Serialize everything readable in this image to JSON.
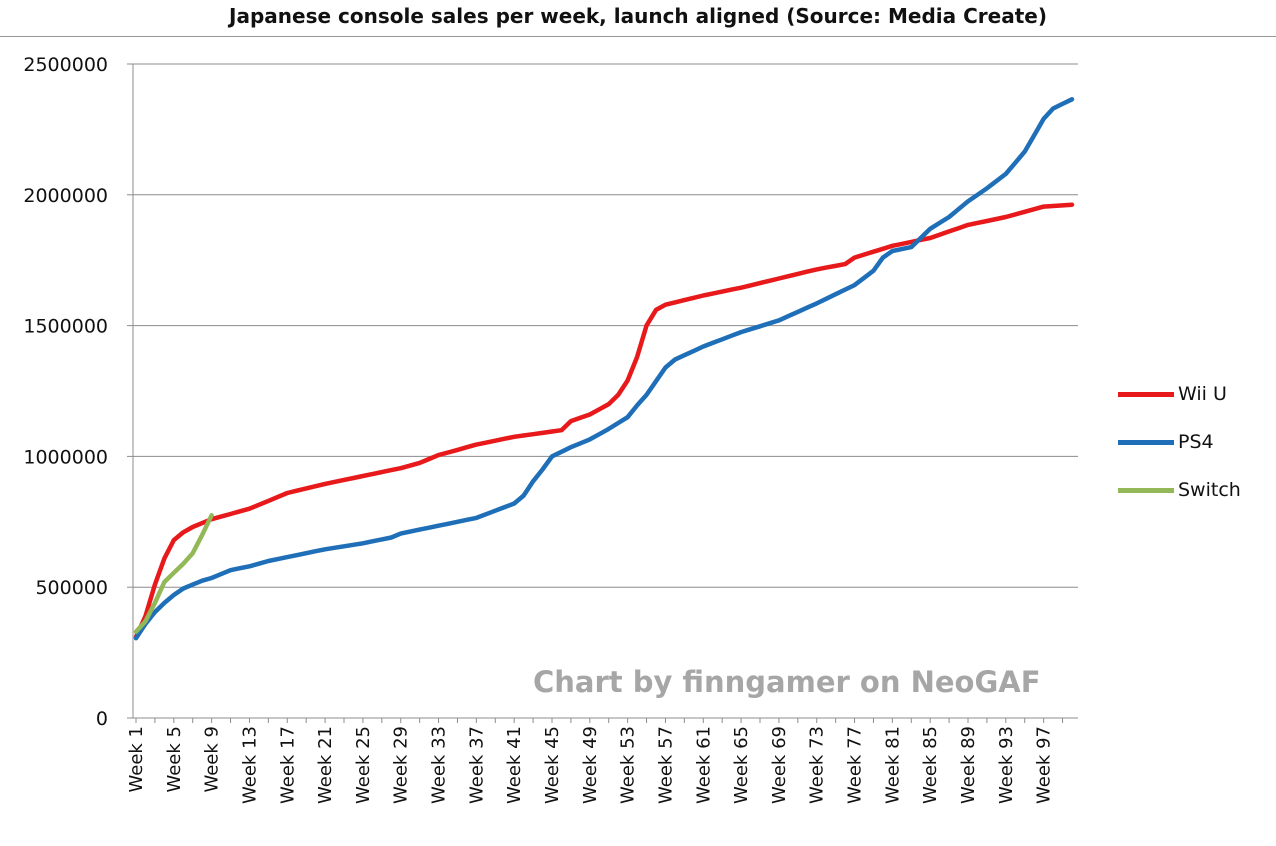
{
  "chart_data": {
    "type": "line",
    "title": "Japanese console sales per week, launch aligned (Source: Media Create)",
    "watermark": "Chart by finngamer on NeoGAF",
    "xlabel": "",
    "ylabel": "",
    "ylim": [
      0,
      2500000
    ],
    "yticks": [
      0,
      500000,
      1000000,
      1500000,
      2000000,
      2500000
    ],
    "ytick_labels": [
      "0",
      "500000",
      "1000000",
      "1500000",
      "2000000",
      "2500000"
    ],
    "x_count": 100,
    "x_tick_weeks": [
      1,
      5,
      9,
      13,
      17,
      21,
      25,
      29,
      33,
      37,
      41,
      45,
      49,
      53,
      57,
      61,
      65,
      69,
      73,
      77,
      81,
      85,
      89,
      93,
      97
    ],
    "x_label_prefix": "Week ",
    "grid": true,
    "legend_position": "right",
    "series": [
      {
        "name": "Wii U",
        "color": "#e8191b",
        "anchors": [
          [
            1,
            310000
          ],
          [
            2,
            390000
          ],
          [
            3,
            510000
          ],
          [
            4,
            610000
          ],
          [
            5,
            680000
          ],
          [
            6,
            710000
          ],
          [
            7,
            730000
          ],
          [
            8,
            745000
          ],
          [
            9,
            760000
          ],
          [
            11,
            780000
          ],
          [
            13,
            800000
          ],
          [
            15,
            830000
          ],
          [
            17,
            860000
          ],
          [
            21,
            895000
          ],
          [
            25,
            925000
          ],
          [
            29,
            955000
          ],
          [
            31,
            975000
          ],
          [
            33,
            1005000
          ],
          [
            37,
            1045000
          ],
          [
            41,
            1075000
          ],
          [
            45,
            1095000
          ],
          [
            46,
            1100000
          ],
          [
            47,
            1135000
          ],
          [
            49,
            1160000
          ],
          [
            51,
            1200000
          ],
          [
            52,
            1235000
          ],
          [
            53,
            1290000
          ],
          [
            54,
            1380000
          ],
          [
            55,
            1500000
          ],
          [
            56,
            1560000
          ],
          [
            57,
            1580000
          ],
          [
            61,
            1615000
          ],
          [
            65,
            1645000
          ],
          [
            69,
            1680000
          ],
          [
            73,
            1715000
          ],
          [
            76,
            1735000
          ],
          [
            77,
            1760000
          ],
          [
            81,
            1805000
          ],
          [
            85,
            1835000
          ],
          [
            89,
            1885000
          ],
          [
            93,
            1915000
          ],
          [
            97,
            1955000
          ],
          [
            100,
            1962000
          ]
        ]
      },
      {
        "name": "PS4",
        "color": "#1f6fb8",
        "anchors": [
          [
            1,
            305000
          ],
          [
            2,
            360000
          ],
          [
            3,
            405000
          ],
          [
            4,
            440000
          ],
          [
            5,
            470000
          ],
          [
            6,
            495000
          ],
          [
            7,
            510000
          ],
          [
            8,
            525000
          ],
          [
            9,
            535000
          ],
          [
            11,
            565000
          ],
          [
            13,
            580000
          ],
          [
            15,
            600000
          ],
          [
            17,
            615000
          ],
          [
            21,
            645000
          ],
          [
            25,
            668000
          ],
          [
            28,
            690000
          ],
          [
            29,
            705000
          ],
          [
            33,
            735000
          ],
          [
            37,
            765000
          ],
          [
            41,
            820000
          ],
          [
            42,
            850000
          ],
          [
            43,
            905000
          ],
          [
            44,
            950000
          ],
          [
            45,
            1000000
          ],
          [
            47,
            1035000
          ],
          [
            49,
            1065000
          ],
          [
            51,
            1105000
          ],
          [
            53,
            1150000
          ],
          [
            54,
            1195000
          ],
          [
            55,
            1235000
          ],
          [
            57,
            1340000
          ],
          [
            58,
            1370000
          ],
          [
            61,
            1420000
          ],
          [
            65,
            1475000
          ],
          [
            69,
            1520000
          ],
          [
            73,
            1585000
          ],
          [
            77,
            1655000
          ],
          [
            79,
            1710000
          ],
          [
            80,
            1760000
          ],
          [
            81,
            1785000
          ],
          [
            83,
            1800000
          ],
          [
            84,
            1835000
          ],
          [
            85,
            1870000
          ],
          [
            87,
            1915000
          ],
          [
            89,
            1975000
          ],
          [
            91,
            2025000
          ],
          [
            93,
            2080000
          ],
          [
            95,
            2165000
          ],
          [
            97,
            2290000
          ],
          [
            98,
            2330000
          ],
          [
            100,
            2365000
          ]
        ]
      },
      {
        "name": "Switch",
        "color": "#92b857",
        "anchors": [
          [
            1,
            330000
          ],
          [
            2,
            370000
          ],
          [
            3,
            440000
          ],
          [
            4,
            520000
          ],
          [
            5,
            555000
          ],
          [
            6,
            590000
          ],
          [
            7,
            630000
          ],
          [
            8,
            700000
          ],
          [
            9,
            775000
          ]
        ]
      }
    ]
  }
}
